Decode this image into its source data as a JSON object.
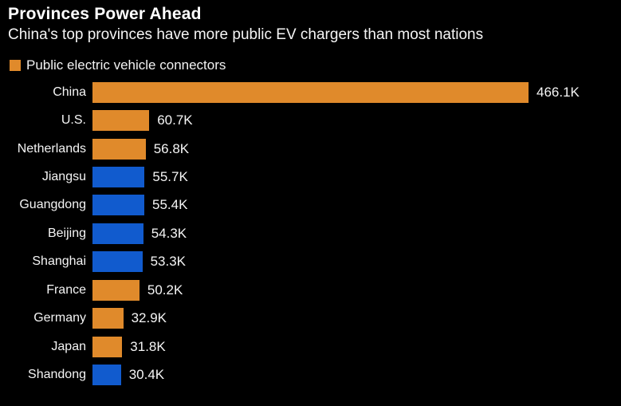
{
  "header": {
    "title": "Provinces Power Ahead",
    "subtitle": "China's top provinces have more public EV chargers than most nations"
  },
  "legend": {
    "label": "Public electric vehicle connectors"
  },
  "colors": {
    "background": "#000000",
    "text": "#ffffff",
    "national": "#E08A2B",
    "province": "#115BCE"
  },
  "chart_data": {
    "type": "bar",
    "orientation": "horizontal",
    "title": "Provinces Power Ahead",
    "subtitle": "China's top provinces have more public EV chargers than most nations",
    "legend_entries": [
      "Public electric vehicle connectors"
    ],
    "legend_position": "top-left",
    "grid": false,
    "unit": "thousands of connectors",
    "categories": [
      "China",
      "U.S.",
      "Netherlands",
      "Jiangsu",
      "Guangdong",
      "Beijing",
      "Shanghai",
      "France",
      "Germany",
      "Japan",
      "Shandong"
    ],
    "values": [
      466.1,
      60.7,
      56.8,
      55.7,
      55.4,
      54.3,
      53.3,
      50.2,
      32.9,
      31.8,
      30.4
    ],
    "value_labels": [
      "466.1K",
      "60.7K",
      "56.8K",
      "55.7K",
      "55.4K",
      "54.3K",
      "53.3K",
      "50.2K",
      "32.9K",
      "31.8K",
      "30.4K"
    ],
    "bar_types": [
      "national",
      "national",
      "national",
      "province",
      "province",
      "province",
      "province",
      "national",
      "national",
      "national",
      "province"
    ],
    "xlim": [
      0,
      466.1
    ]
  }
}
